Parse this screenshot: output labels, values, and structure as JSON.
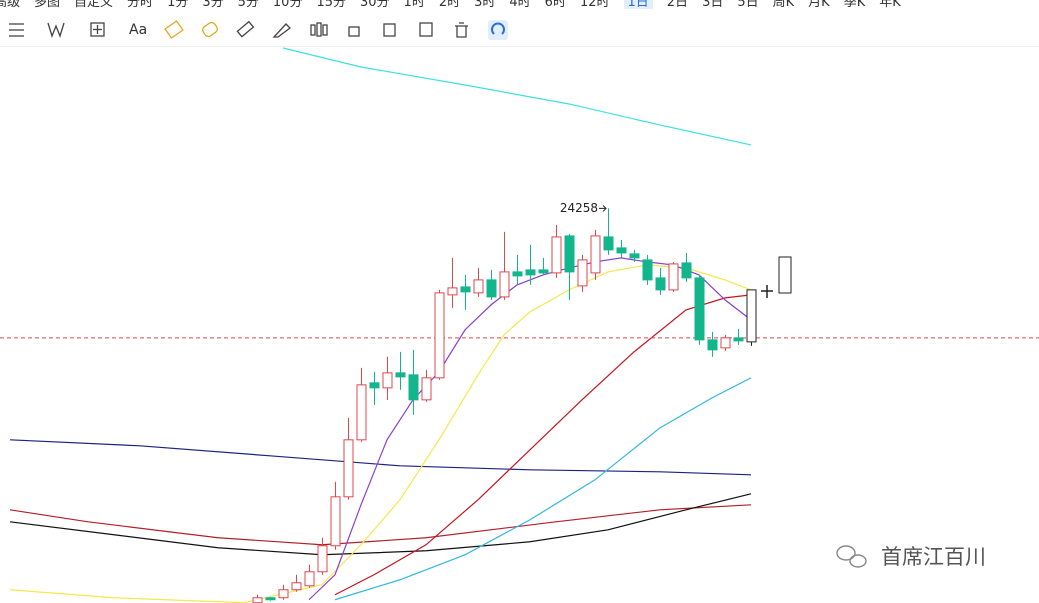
{
  "toolbar": {
    "periods": [
      "高级",
      "多图",
      "自定义",
      "分时",
      "1分",
      "3分",
      "5分",
      "10分",
      "15分",
      "30分",
      "1时",
      "2时",
      "3时",
      "4时",
      "6时",
      "12时",
      "1日",
      "2日",
      "3日",
      "5日",
      "周K",
      "月K",
      "季K",
      "年K"
    ],
    "font_button": "Aa"
  },
  "chart_data": {
    "type": "candlestick",
    "x": [
      19,
      20,
      21,
      22,
      23,
      24,
      25,
      26,
      27,
      28,
      29,
      30,
      31,
      32,
      33,
      34,
      35,
      36,
      37,
      38,
      39,
      40,
      41,
      42,
      43,
      44,
      45,
      46,
      47,
      48,
      49,
      50,
      51,
      52,
      53,
      54,
      55,
      56,
      57
    ],
    "open": [
      21102,
      21142,
      21142,
      21206,
      21238,
      21350,
      21558,
      21950,
      22406,
      22862,
      22822,
      22942,
      22926,
      22726,
      22902,
      23566,
      23630,
      23582,
      23686,
      23550,
      23750,
      23766,
      23766,
      23742,
      24038,
      23638,
      23742,
      24030,
      23942,
      23894,
      23846,
      23702,
      23606,
      23822,
      23702,
      23206,
      23142,
      23222,
      23190
    ],
    "high": [
      21166,
      21150,
      21246,
      21326,
      21406,
      21622,
      22070,
      22582,
      22982,
      22950,
      23070,
      23110,
      23126,
      22966,
      23606,
      23862,
      23726,
      23782,
      23766,
      24070,
      23886,
      23966,
      23862,
      24126,
      24054,
      23886,
      24086,
      24258,
      24006,
      23926,
      23886,
      23782,
      23830,
      23902,
      23726,
      23270,
      23246,
      23294,
      23606
    ],
    "low": [
      21102,
      21118,
      21126,
      21190,
      21222,
      21326,
      21526,
      21926,
      22390,
      22686,
      22726,
      22806,
      22606,
      22710,
      22886,
      23462,
      23446,
      23550,
      23526,
      23526,
      23646,
      23646,
      23726,
      23702,
      23526,
      23590,
      23686,
      23886,
      23862,
      23830,
      23646,
      23566,
      23590,
      23670,
      23166,
      23070,
      23118,
      23166,
      23158
    ],
    "close": [
      21142,
      21126,
      21206,
      21262,
      21350,
      21558,
      21950,
      22406,
      22846,
      22822,
      22942,
      22910,
      22726,
      22902,
      23582,
      23622,
      23590,
      23686,
      23550,
      23750,
      23718,
      23726,
      23742,
      24030,
      23750,
      23846,
      24038,
      23926,
      23902,
      23862,
      23686,
      23606,
      23814,
      23702,
      23206,
      23126,
      23222,
      23198,
      23606
    ],
    "up_color": "#e0474c",
    "down_color": "#12b58c",
    "last_color": "#222222",
    "ylim": [
      21100,
      25550
    ],
    "price_line": 23222,
    "price_line_color": "#e0474c",
    "series": [
      {
        "color": "#3de0e0",
        "x": [
          21,
          27,
          35,
          43,
          50,
          57
        ],
        "values": [
          25542,
          25390,
          25246,
          25094,
          24926,
          24766
        ]
      },
      {
        "color": "#1a237e",
        "x": [
          0,
          10,
          20,
          30,
          40,
          50,
          57
        ],
        "values": [
          22406,
          22358,
          22278,
          22198,
          22166,
          22150,
          22126
        ]
      },
      {
        "color": "#b3202a",
        "x": [
          0,
          6,
          16,
          24,
          32,
          42,
          50,
          57
        ],
        "values": [
          21846,
          21750,
          21622,
          21566,
          21622,
          21750,
          21846,
          21886
        ]
      },
      {
        "color": "#111111",
        "x": [
          0,
          8,
          16,
          24,
          32,
          40,
          46,
          52,
          57
        ],
        "values": [
          21750,
          21646,
          21542,
          21486,
          21518,
          21590,
          21686,
          21846,
          21974
        ]
      },
      {
        "color": "#2fb8e0",
        "x": [
          25,
          30,
          35,
          40,
          45,
          50,
          54,
          57
        ],
        "values": [
          21126,
          21286,
          21486,
          21766,
          22086,
          22502,
          22742,
          22902
        ]
      },
      {
        "color": "#c8151e",
        "x": [
          25,
          28,
          32,
          36,
          40,
          44,
          48,
          52,
          55,
          57
        ],
        "values": [
          21166,
          21326,
          21566,
          21926,
          22326,
          22726,
          23110,
          23446,
          23542,
          23566
        ]
      },
      {
        "color": "#f5e84a",
        "x": [
          0,
          8,
          18,
          24,
          27,
          30,
          33,
          36,
          38,
          40,
          43,
          46,
          49,
          52,
          55,
          57
        ],
        "values": [
          21206,
          21142,
          21102,
          21246,
          21566,
          21926,
          22406,
          22926,
          23246,
          23430,
          23606,
          23750,
          23806,
          23782,
          23686,
          23606
        ]
      },
      {
        "color": "#8a3fd0",
        "x": [
          23,
          25,
          27,
          29,
          31,
          33,
          35,
          37,
          39,
          41,
          43,
          45,
          47,
          49,
          51,
          53,
          55,
          57
        ],
        "values": [
          21126,
          21326,
          21886,
          22406,
          22726,
          22950,
          23286,
          23486,
          23646,
          23726,
          23782,
          23830,
          23862,
          23830,
          23806,
          23726,
          23526,
          23366
        ]
      }
    ]
  },
  "watermark": "首席江百川"
}
